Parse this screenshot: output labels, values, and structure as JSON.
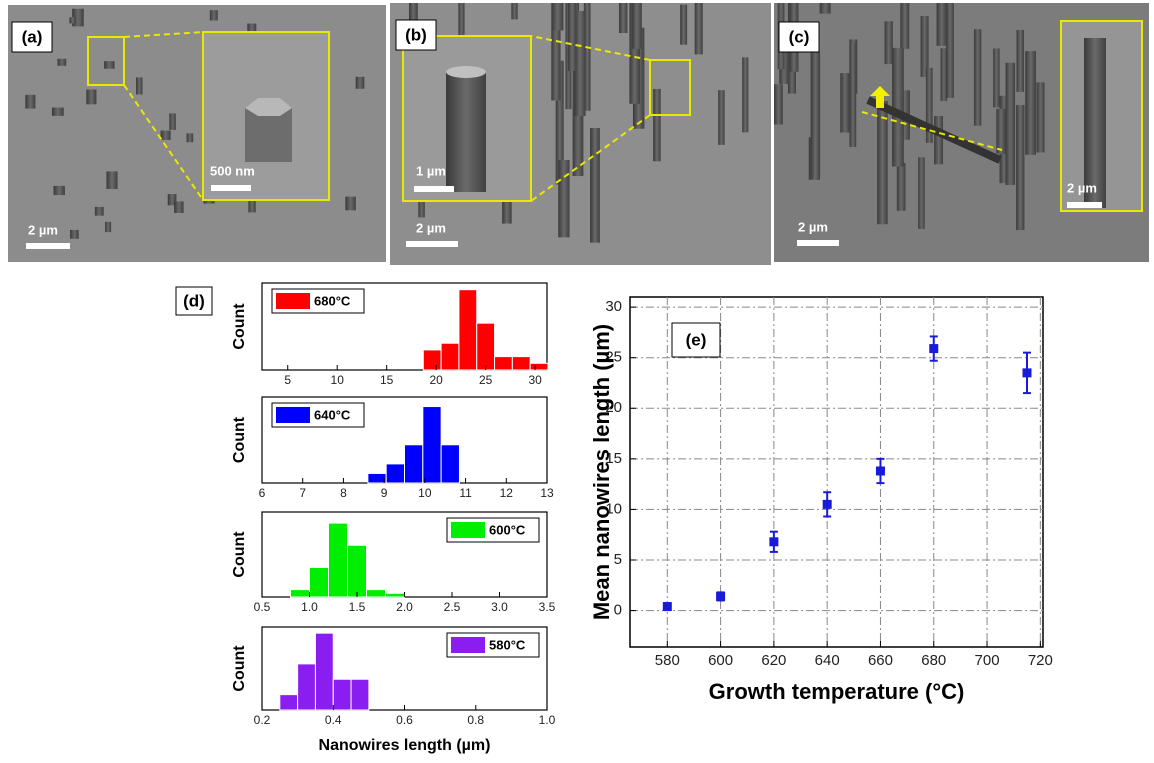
{
  "images": [
    {
      "label": "(a)",
      "scale_bar": "2 µm",
      "inset_scale_bar": "500 nm"
    },
    {
      "label": "(b)",
      "scale_bar": "2 µm",
      "inset_scale_bar": "1 µm"
    },
    {
      "label": "(c)",
      "scale_bar": "2 µm",
      "inset_scale_bar": "2 µm"
    }
  ],
  "chart_data": [
    {
      "type": "histogram",
      "label": "(d)",
      "ylabel": "Count",
      "legend": "upper left",
      "bins": [
        18.7,
        20.5,
        22.3,
        24.1,
        25.9,
        27.7,
        29.5,
        31.3
      ],
      "series": [
        {
          "name": "680°C",
          "color": "#ff0000",
          "values": [
            3,
            4,
            12,
            7,
            2,
            2,
            1
          ]
        }
      ],
      "xlim": [
        2.4,
        31.2
      ],
      "ylim": [
        0,
        13
      ],
      "xticks": [
        5,
        10,
        15,
        20,
        25,
        30
      ]
    },
    {
      "type": "histogram",
      "ylabel": "Count",
      "legend": "upper left",
      "bins": [
        8.6,
        9.05,
        9.5,
        9.95,
        10.4,
        10.85
      ],
      "series": [
        {
          "name": "640°C",
          "color": "#0000ff",
          "values": [
            1,
            2,
            4,
            8,
            4
          ]
        }
      ],
      "xlim": [
        6,
        13
      ],
      "ylim": [
        0,
        9
      ],
      "xticks": [
        6,
        7,
        8,
        9,
        10,
        11,
        12,
        13
      ]
    },
    {
      "type": "histogram",
      "ylabel": "Count",
      "legend": "upper right",
      "bins": [
        0.8,
        1.0,
        1.2,
        1.4,
        1.6,
        1.8,
        2.0
      ],
      "series": [
        {
          "name": "600°C",
          "color": "#00ee00",
          "values": [
            2,
            8,
            20,
            14,
            2,
            1
          ]
        }
      ],
      "xlim": [
        0.5,
        3.5
      ],
      "ylim": [
        0,
        23
      ],
      "xticks": [
        0.5,
        {
          "value": 1,
          "label": "1.0"
        },
        1.5,
        {
          "value": 2,
          "label": "2.0"
        },
        2.5,
        {
          "value": 3,
          "label": "3.0"
        },
        3.5
      ]
    },
    {
      "type": "histogram",
      "ylabel": "Count",
      "xlabel": "Nanowires length (µm)",
      "legend": "upper right",
      "bins": [
        0.25,
        0.3,
        0.35,
        0.4,
        0.45,
        0.5
      ],
      "series": [
        {
          "name": "580°C",
          "color": "#8a1ef0",
          "values": [
            1,
            3,
            5,
            2,
            2
          ]
        }
      ],
      "xlim": [
        0.2,
        1.0
      ],
      "ylim": [
        0,
        5.4
      ],
      "xticks": [
        0.2,
        0.4,
        0.6,
        0.8,
        {
          "value": 1,
          "label": "1.0"
        }
      ]
    },
    {
      "type": "scatter",
      "label": "(e)",
      "xlabel": "Growth temperature (°C)",
      "ylabel": "Mean nanowires length (µm)",
      "x": [
        580,
        600,
        620,
        640,
        660,
        680,
        715
      ],
      "series": [
        {
          "color": "#1a1adb",
          "values": [
            0.4,
            1.4,
            6.8,
            10.5,
            13.8,
            25.9,
            23.5
          ],
          "errors": [
            0.3,
            0.4,
            1.0,
            1.2,
            1.2,
            1.2,
            2.0
          ]
        }
      ],
      "xlim": [
        566,
        721
      ],
      "ylim": [
        -3.6,
        31
      ],
      "xticks": [
        580,
        600,
        620,
        640,
        660,
        680,
        700,
        720
      ],
      "yticks": [
        0,
        5,
        10,
        15,
        20,
        25,
        30
      ],
      "grid": true
    }
  ]
}
